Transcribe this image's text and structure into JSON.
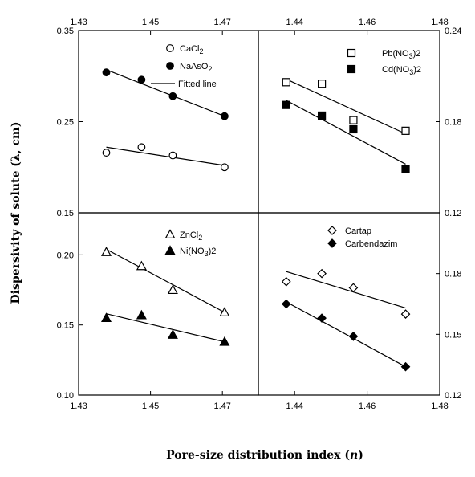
{
  "chart_data": {
    "type": "scatter",
    "ylabel": "Dispersivity of solute (λ, cm)",
    "xlabel": "Pore-size distribution index (n)",
    "panels": [
      {
        "id": "top-left",
        "xlim": [
          1.43,
          1.48
        ],
        "ylim": [
          0.15,
          0.35
        ],
        "x_ticks": [
          "1.43",
          "1.45",
          "1.47"
        ],
        "x_tick_values": [
          1.43,
          1.45,
          1.47
        ],
        "x_ticks_position": "top",
        "y_ticks": [
          "0.35",
          "0.25",
          "0.15"
        ],
        "y_tick_values": [
          0.35,
          0.25,
          0.15
        ],
        "y_ticks_position": "left",
        "series": [
          {
            "name": "CaCl2",
            "marker": "circle-open",
            "x": [
              1.4377,
              1.4475,
              1.4562,
              1.4706
            ],
            "y": [
              0.216,
              0.222,
              0.213,
              0.2
            ],
            "fit": [
              [
                1.4377,
                0.222
              ],
              [
                1.4706,
                0.202
              ]
            ]
          },
          {
            "name": "NaAsO2",
            "marker": "circle-filled",
            "x": [
              1.4377,
              1.4475,
              1.4562,
              1.4706
            ],
            "y": [
              0.304,
              0.296,
              0.278,
              0.256
            ],
            "fit": [
              [
                1.4377,
                0.307
              ],
              [
                1.4706,
                0.256
              ]
            ]
          }
        ],
        "legend": [
          {
            "label": "CaCl",
            "sub": "2",
            "label_after": "",
            "marker": "circle-open"
          },
          {
            "label": "NaAsO",
            "sub": "2",
            "label_after": "",
            "marker": "circle-filled"
          },
          {
            "label": "Fitted line",
            "sub": "",
            "label_after": "",
            "marker": "line"
          }
        ]
      },
      {
        "id": "top-right",
        "xlim": [
          1.43,
          1.48
        ],
        "ylim": [
          0.12,
          0.24
        ],
        "x_ticks": [
          "1.44",
          "1.46",
          "1.48"
        ],
        "x_tick_values": [
          1.44,
          1.46,
          1.48
        ],
        "x_ticks_position": "top",
        "y_ticks": [
          "0.24",
          "0.18",
          "0.12"
        ],
        "y_tick_values": [
          0.24,
          0.18,
          0.12
        ],
        "y_ticks_position": "right",
        "series": [
          {
            "name": "Pb(NO3)2",
            "marker": "square-open",
            "x": [
              1.4377,
              1.4475,
              1.4562,
              1.4706
            ],
            "y": [
              0.206,
              0.205,
              0.181,
              0.174
            ],
            "fit": [
              [
                1.4377,
                0.208
              ],
              [
                1.4706,
                0.172
              ]
            ]
          },
          {
            "name": "Cd(NO3)2",
            "marker": "square-filled",
            "x": [
              1.4377,
              1.4475,
              1.4562,
              1.4706
            ],
            "y": [
              0.191,
              0.184,
              0.175,
              0.149
            ],
            "fit": [
              [
                1.4377,
                0.194
              ],
              [
                1.4706,
                0.152
              ]
            ]
          }
        ],
        "legend": [
          {
            "label": "Pb(NO",
            "sub": "3",
            "label_after": ")2",
            "marker": "square-open"
          },
          {
            "label": "Cd(NO",
            "sub": "3",
            "label_after": ")2",
            "marker": "square-filled"
          }
        ]
      },
      {
        "id": "bottom-left",
        "xlim": [
          1.43,
          1.48
        ],
        "ylim": [
          0.1,
          0.23
        ],
        "x_ticks": [
          "1.43",
          "1.45",
          "1.47"
        ],
        "x_tick_values": [
          1.43,
          1.45,
          1.47
        ],
        "x_ticks_position": "bottom",
        "y_ticks": [
          "0.20",
          "0.15",
          "0.10"
        ],
        "y_tick_values": [
          0.2,
          0.15,
          0.1
        ],
        "y_ticks_position": "left",
        "series": [
          {
            "name": "ZnCl2",
            "marker": "triangle-open",
            "x": [
              1.4377,
              1.4475,
              1.4562,
              1.4706
            ],
            "y": [
              0.202,
              0.192,
              0.175,
              0.159
            ],
            "fit": [
              [
                1.4377,
                0.204
              ],
              [
                1.4706,
                0.159
              ]
            ]
          },
          {
            "name": "Ni(NO3)2",
            "marker": "triangle-filled",
            "x": [
              1.4377,
              1.4475,
              1.4562,
              1.4706
            ],
            "y": [
              0.155,
              0.157,
              0.143,
              0.138
            ],
            "fit": [
              [
                1.4377,
                0.158
              ],
              [
                1.4706,
                0.138
              ]
            ]
          }
        ],
        "legend": [
          {
            "label": "ZnCl",
            "sub": "2",
            "label_after": "",
            "marker": "triangle-open"
          },
          {
            "label": "Ni(NO",
            "sub": "3",
            "label_after": ")2",
            "marker": "triangle-filled"
          }
        ]
      },
      {
        "id": "bottom-right",
        "xlim": [
          1.43,
          1.48
        ],
        "ylim": [
          0.12,
          0.21
        ],
        "x_ticks": [
          "1.44",
          "1.46",
          "1.48"
        ],
        "x_tick_values": [
          1.44,
          1.46,
          1.48
        ],
        "x_ticks_position": "bottom",
        "y_ticks": [
          "0.18",
          "0.15",
          "0.12"
        ],
        "y_tick_values": [
          0.18,
          0.15,
          0.12
        ],
        "y_ticks_position": "right",
        "series": [
          {
            "name": "Cartap",
            "marker": "diamond-open",
            "x": [
              1.4377,
              1.4475,
              1.4562,
              1.4706
            ],
            "y": [
              0.176,
              0.18,
              0.173,
              0.16
            ],
            "fit": [
              [
                1.4377,
                0.181
              ],
              [
                1.4706,
                0.163
              ]
            ]
          },
          {
            "name": "Carbendazim",
            "marker": "diamond-filled",
            "x": [
              1.4377,
              1.4475,
              1.4562,
              1.4706
            ],
            "y": [
              0.165,
              0.158,
              0.149,
              0.134
            ],
            "fit": [
              [
                1.4377,
                0.166
              ],
              [
                1.4706,
                0.134
              ]
            ]
          }
        ],
        "legend": [
          {
            "label": "Cartap",
            "sub": "",
            "label_after": "",
            "marker": "diamond-open"
          },
          {
            "label": "Carbendazim",
            "sub": "",
            "label_after": "",
            "marker": "diamond-filled"
          }
        ]
      }
    ]
  }
}
